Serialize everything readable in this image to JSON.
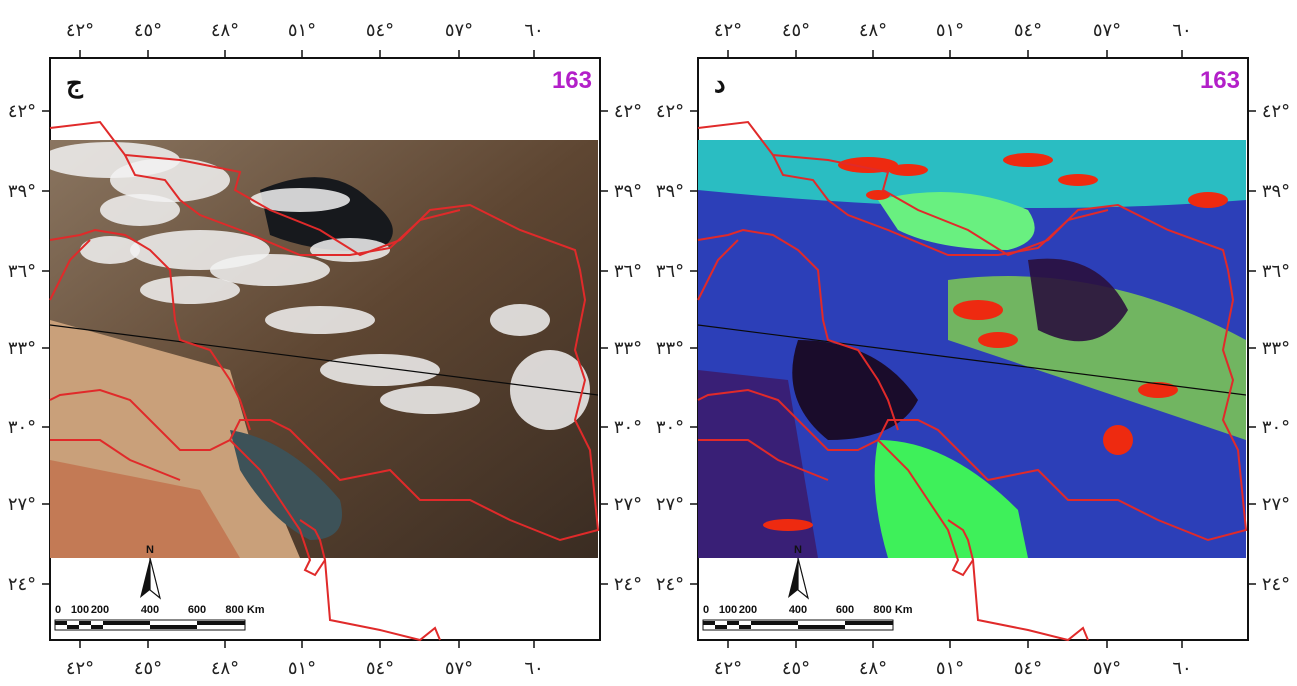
{
  "panels": [
    {
      "id": "left",
      "letter": "ج",
      "day_label": "163",
      "top_ticks": [
        "٤٢°",
        "٤٥°",
        "٤٨°",
        "٥١°",
        "٥٤°",
        "٥٧°",
        "٦٠"
      ],
      "bottom_ticks": [
        "٤٢°",
        "٤٥°",
        "٤٨°",
        "٥١°",
        "٥٤°",
        "٥٧°",
        "٦٠"
      ],
      "left_ticks": [
        "٤٢°",
        "٣٩°",
        "٣٦°",
        "٣٣°",
        "٣٠°",
        "٢٧°",
        "٢٤°"
      ],
      "right_ticks": [
        "٤٢°",
        "٣٩°",
        "٣٦°",
        "٣٣°",
        "٣٠°",
        "٢٧°",
        "٢٤°"
      ],
      "north": "N",
      "scale_labels": [
        "0",
        "100",
        "200",
        "400",
        "600",
        "800 Km"
      ],
      "imagery": "true-color"
    },
    {
      "id": "right",
      "letter": "د",
      "day_label": "163",
      "top_ticks": [
        "٤٢°",
        "٤٥°",
        "٤٨°",
        "٥١°",
        "٥٤°",
        "٥٧°",
        "٦٠"
      ],
      "bottom_ticks": [
        "٤٢°",
        "٤٥°",
        "٤٨°",
        "٥١°",
        "٥٤°",
        "٥٧°",
        "٦٠"
      ],
      "left_ticks": [
        "٤٢°",
        "٣٩°",
        "٣٦°",
        "٣٣°",
        "٣٠°",
        "٢٧°",
        "٢٤°"
      ],
      "right_ticks": [
        "٤٢°",
        "٣٩°",
        "٣٦°",
        "٣٣°",
        "٣٠°",
        "٢٧°",
        "٢٤°"
      ],
      "north": "N",
      "scale_labels": [
        "0",
        "100",
        "200",
        "400",
        "600",
        "800 Km"
      ],
      "imagery": "false-color"
    }
  ],
  "colors": {
    "border": "#e02a2a",
    "day_label": "#b31fc9",
    "frame": "#111111"
  }
}
